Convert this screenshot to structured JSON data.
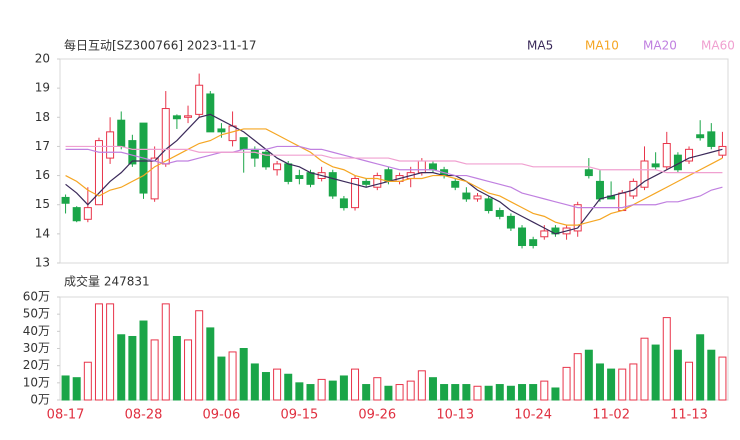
{
  "chart_data": [
    {
      "type": "candlestick",
      "title": "每日互动[SZ300766] 2023-11-17",
      "categories": [
        "08-17",
        null,
        null,
        null,
        null,
        null,
        null,
        "08-28",
        null,
        null,
        null,
        null,
        null,
        null,
        "09-06",
        null,
        null,
        null,
        null,
        null,
        null,
        "09-15",
        null,
        null,
        null,
        null,
        null,
        null,
        "09-26",
        null,
        null,
        null,
        null,
        null,
        null,
        "10-13",
        null,
        null,
        null,
        null,
        null,
        null,
        "10-24",
        null,
        null,
        null,
        null,
        null,
        null,
        "11-02",
        null,
        null,
        null,
        null,
        null,
        null,
        "11-13",
        null,
        null,
        null
      ],
      "open": [
        15.25,
        14.9,
        14.5,
        15.0,
        16.6,
        17.9,
        17.2,
        17.8,
        15.2,
        16.4,
        18.05,
        18.0,
        18.1,
        18.8,
        17.6,
        17.2,
        17.3,
        16.9,
        16.8,
        16.2,
        16.4,
        16.0,
        16.1,
        15.9,
        16.1,
        15.2,
        14.9,
        15.8,
        15.6,
        16.2,
        15.8,
        15.9,
        16.1,
        16.4,
        16.2,
        15.8,
        15.4,
        15.2,
        15.2,
        14.8,
        14.6,
        14.2,
        13.8,
        13.9,
        14.2,
        14.0,
        14.1,
        16.2,
        15.8,
        15.3,
        14.8,
        15.3,
        15.6,
        16.4,
        16.3,
        16.7,
        16.5,
        17.4,
        17.5,
        16.7
      ],
      "high": [
        15.35,
        14.95,
        15.6,
        17.3,
        18.0,
        18.2,
        17.4,
        17.8,
        17.0,
        18.9,
        18.1,
        18.4,
        19.5,
        18.9,
        17.8,
        18.2,
        17.3,
        17.0,
        16.9,
        16.5,
        16.5,
        16.2,
        16.2,
        16.3,
        16.2,
        15.3,
        16.0,
        15.9,
        16.1,
        16.3,
        16.1,
        16.3,
        16.6,
        16.5,
        16.3,
        15.9,
        15.6,
        15.4,
        15.3,
        14.9,
        14.7,
        14.3,
        13.9,
        14.3,
        14.3,
        14.3,
        15.1,
        16.6,
        16.2,
        15.8,
        15.5,
        15.9,
        17.0,
        16.8,
        17.5,
        16.8,
        17.0,
        17.9,
        17.8,
        17.5
      ],
      "low": [
        14.7,
        14.4,
        14.4,
        15.0,
        16.4,
        16.9,
        16.3,
        15.2,
        15.1,
        16.3,
        17.6,
        17.8,
        18.0,
        17.5,
        17.3,
        17.0,
        16.1,
        16.3,
        16.2,
        16.0,
        15.7,
        15.7,
        15.6,
        15.8,
        15.2,
        14.8,
        14.8,
        15.6,
        15.5,
        15.7,
        15.7,
        15.6,
        16.0,
        16.1,
        15.9,
        15.5,
        15.1,
        15.1,
        14.7,
        14.5,
        14.1,
        13.5,
        13.5,
        13.8,
        13.9,
        13.8,
        13.9,
        15.9,
        15.1,
        15.2,
        14.8,
        15.2,
        15.5,
        16.2,
        16.2,
        16.1,
        16.4,
        17.2,
        16.9,
        16.6
      ],
      "close": [
        15.05,
        14.45,
        14.9,
        17.2,
        17.5,
        17.0,
        16.4,
        15.4,
        16.6,
        18.3,
        17.95,
        18.05,
        19.1,
        17.5,
        17.5,
        17.7,
        16.9,
        16.6,
        16.3,
        16.4,
        15.8,
        15.9,
        15.7,
        16.1,
        15.3,
        14.9,
        15.9,
        15.7,
        16.0,
        15.8,
        16.0,
        16.1,
        16.5,
        16.2,
        16.0,
        15.6,
        15.2,
        15.3,
        14.8,
        14.6,
        14.2,
        13.6,
        13.6,
        14.1,
        14.0,
        14.2,
        15.0,
        16.0,
        15.2,
        15.2,
        15.4,
        15.8,
        16.5,
        16.3,
        17.1,
        16.2,
        16.9,
        17.3,
        17.0,
        17.0
      ],
      "up_color": "#e8344a",
      "down_color": "#1aa548",
      "series": [
        {
          "name": "MA5",
          "color": "#3b2a5a",
          "values": [
            15.7,
            15.4,
            15.0,
            15.4,
            15.8,
            16.1,
            16.5,
            16.5,
            16.5,
            16.9,
            17.2,
            17.6,
            18.0,
            18.1,
            17.9,
            17.7,
            17.5,
            17.2,
            16.9,
            16.6,
            16.4,
            16.3,
            16.1,
            16.0,
            15.9,
            15.8,
            15.7,
            15.6,
            15.7,
            15.8,
            15.9,
            16.0,
            16.1,
            16.1,
            16.0,
            16.0,
            15.8,
            15.5,
            15.3,
            15.1,
            14.8,
            14.6,
            14.4,
            14.2,
            14.0,
            14.1,
            14.2,
            14.7,
            15.2,
            15.3,
            15.4,
            15.5,
            15.8,
            16.0,
            16.2,
            16.4,
            16.6,
            16.7,
            16.8,
            16.9
          ]
        },
        {
          "name": "MA10",
          "color": "#f5a623",
          "values": [
            16.0,
            15.8,
            15.5,
            15.3,
            15.5,
            15.6,
            15.8,
            16.0,
            16.3,
            16.5,
            16.7,
            16.9,
            17.1,
            17.2,
            17.4,
            17.5,
            17.6,
            17.6,
            17.6,
            17.4,
            17.2,
            17.0,
            16.8,
            16.5,
            16.3,
            16.2,
            16.0,
            15.9,
            15.9,
            15.8,
            15.8,
            15.9,
            15.9,
            16.0,
            16.0,
            15.9,
            15.8,
            15.6,
            15.4,
            15.3,
            15.1,
            14.9,
            14.7,
            14.6,
            14.4,
            14.3,
            14.3,
            14.4,
            14.5,
            14.7,
            14.8,
            15.0,
            15.2,
            15.4,
            15.6,
            15.8,
            16.0,
            16.2,
            16.4,
            16.6
          ]
        },
        {
          "name": "MA20",
          "color": "#c080e0",
          "values": [
            16.9,
            16.9,
            16.9,
            16.8,
            16.8,
            16.8,
            16.7,
            16.6,
            16.5,
            16.4,
            16.5,
            16.5,
            16.6,
            16.7,
            16.8,
            16.8,
            16.9,
            16.9,
            16.9,
            17.0,
            17.0,
            17.0,
            16.9,
            16.9,
            16.8,
            16.7,
            16.6,
            16.5,
            16.4,
            16.3,
            16.2,
            16.2,
            16.2,
            16.2,
            16.1,
            16.0,
            16.0,
            15.9,
            15.8,
            15.7,
            15.6,
            15.4,
            15.3,
            15.2,
            15.1,
            15.0,
            14.9,
            14.9,
            14.9,
            14.9,
            14.9,
            15.0,
            15.0,
            15.0,
            15.1,
            15.1,
            15.2,
            15.3,
            15.5,
            15.6
          ]
        },
        {
          "name": "MA60",
          "color": "#f0a0d0",
          "values": [
            17.0,
            17.0,
            17.0,
            17.0,
            17.0,
            17.0,
            16.9,
            16.9,
            16.9,
            16.9,
            16.9,
            16.9,
            16.8,
            16.8,
            16.8,
            16.8,
            16.8,
            16.8,
            16.7,
            16.7,
            16.7,
            16.7,
            16.7,
            16.7,
            16.6,
            16.6,
            16.6,
            16.6,
            16.6,
            16.6,
            16.5,
            16.5,
            16.5,
            16.5,
            16.5,
            16.5,
            16.4,
            16.4,
            16.4,
            16.4,
            16.4,
            16.4,
            16.3,
            16.3,
            16.3,
            16.3,
            16.3,
            16.3,
            16.2,
            16.2,
            16.2,
            16.2,
            16.2,
            16.2,
            16.1,
            16.1,
            16.1,
            16.1,
            16.1,
            16.1
          ]
        }
      ],
      "ylim": [
        13,
        20
      ],
      "yticks": [
        13,
        14,
        15,
        16,
        17,
        18,
        19,
        20
      ]
    },
    {
      "type": "bar",
      "title": "成交量 247831",
      "values": [
        14,
        13,
        22,
        56,
        56,
        38,
        37,
        46,
        35,
        56,
        37,
        35,
        52,
        42,
        25,
        28,
        30,
        21,
        16,
        18,
        15,
        10,
        9,
        12,
        11,
        14,
        18,
        9,
        13,
        8,
        9,
        11,
        17,
        13,
        9,
        9,
        9,
        8,
        8,
        9,
        8,
        9,
        9,
        11,
        7,
        19,
        27,
        29,
        21,
        18,
        18,
        21,
        36,
        32,
        48,
        29,
        22,
        38,
        29,
        25
      ],
      "ylim": [
        0,
        60
      ],
      "yticks": [
        {
          "value": 0,
          "label": "0万"
        },
        {
          "value": 10,
          "label": "10万"
        },
        {
          "value": 20,
          "label": "20万"
        },
        {
          "value": 30,
          "label": "30万"
        },
        {
          "value": 40,
          "label": "40万"
        },
        {
          "value": 50,
          "label": "50万"
        },
        {
          "value": 60,
          "label": "60万"
        }
      ]
    }
  ]
}
